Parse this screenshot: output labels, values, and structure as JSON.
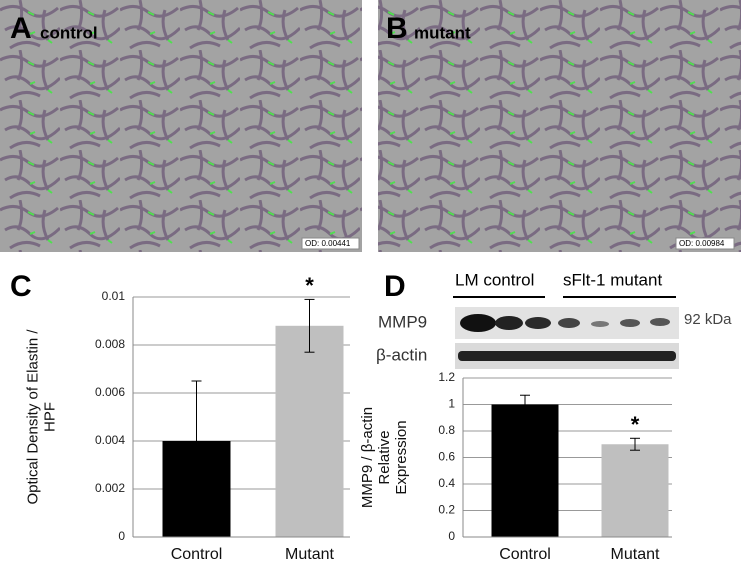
{
  "micrographs": [
    {
      "letter": "A",
      "label": "control",
      "od": "OD: 0.00441"
    },
    {
      "letter": "B",
      "label": "mutant",
      "od": "OD: 0.00984"
    }
  ],
  "blot": {
    "groups": [
      "LM control",
      "sFlt-1 mutant"
    ],
    "rows": [
      "MMP9",
      "β-actin"
    ],
    "size": "92 kDa"
  },
  "chart_data": [
    {
      "type": "bar",
      "panel": "C",
      "categories": [
        "Control",
        "Mutant"
      ],
      "values": [
        0.004,
        0.0088
      ],
      "errors": [
        0.0025,
        0.0011
      ],
      "colors": [
        "#000000",
        "#bfbfbf"
      ],
      "ylabel_lines": [
        "Optical Density of Elastin /",
        "HPF"
      ],
      "ylim": [
        0,
        0.01
      ],
      "yticks": [
        0,
        0.002,
        0.004,
        0.006,
        0.008,
        0.01
      ],
      "grid": true,
      "annotation": "*"
    },
    {
      "type": "bar",
      "panel": "D",
      "categories": [
        "Control",
        "Mutant"
      ],
      "values": [
        1.0,
        0.7
      ],
      "errors": [
        0.07,
        0.045
      ],
      "colors": [
        "#000000",
        "#bfbfbf"
      ],
      "ylabel_lines": [
        "MMP9 / β-actin",
        "Relative",
        "Expression"
      ],
      "ylim": [
        0,
        1.2
      ],
      "yticks": [
        0,
        0.2,
        0.4,
        0.6,
        0.8,
        1,
        1.2
      ],
      "grid": true,
      "annotation": "*"
    }
  ]
}
